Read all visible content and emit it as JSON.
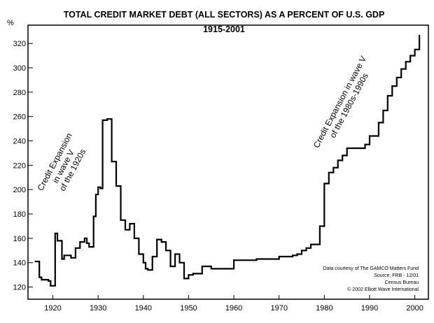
{
  "chart_data": {
    "type": "line",
    "title": "TOTAL CREDIT MARKET DEBT (ALL SECTORS) AS A PERCENT OF U.S. GDP",
    "subtitle": "1915-2001",
    "ylabel": "%",
    "xlabel": "",
    "xlim": [
      1914.5,
      2003
    ],
    "ylim": [
      110,
      335
    ],
    "x_ticks": [
      1920,
      1930,
      1940,
      1950,
      1960,
      1970,
      1980,
      1990,
      2000
    ],
    "y_ticks": [
      120,
      140,
      160,
      180,
      200,
      220,
      240,
      260,
      280,
      300,
      320
    ],
    "grid": false,
    "series": [
      {
        "name": "",
        "x": [
          1916,
          1917,
          1917.5,
          1918,
          1919,
          1919.5,
          1920,
          1920.5,
          1921,
          1922,
          1922.5,
          1923,
          1924,
          1925,
          1926,
          1927,
          1927.5,
          1928,
          1929,
          1929.5,
          1930,
          1930.5,
          1931,
          1932,
          1933,
          1934,
          1935,
          1936,
          1937,
          1938,
          1939,
          1940,
          1940.5,
          1941,
          1942,
          1943,
          1944,
          1945,
          1946,
          1947,
          1948,
          1949,
          1950,
          1951,
          1953,
          1955,
          1960,
          1965,
          1970,
          1973,
          1974,
          1975,
          1976,
          1977,
          1979,
          1980,
          1981,
          1982,
          1983,
          1984,
          1985,
          1986,
          1987,
          1988,
          1989,
          1990,
          1991,
          1992,
          1993,
          1994,
          1995,
          1996,
          1997,
          1998,
          1999,
          2000,
          2001
        ],
        "values": [
          141,
          128,
          126,
          126,
          125,
          121,
          121,
          164,
          158,
          143,
          146,
          146,
          144,
          152,
          157,
          160,
          156,
          153,
          178,
          196,
          202,
          201,
          257,
          258,
          223,
          203,
          175,
          167,
          172,
          160,
          147,
          140,
          135,
          134,
          145,
          159,
          157,
          150,
          137,
          147,
          140,
          127,
          130,
          131,
          137,
          135,
          142,
          143,
          145,
          146,
          147,
          150,
          152,
          155,
          170,
          205,
          214,
          218,
          224,
          228,
          234,
          234,
          234,
          234,
          237,
          244,
          244,
          255,
          265,
          277,
          285,
          292,
          299,
          305,
          310,
          315,
          327
        ]
      }
    ],
    "annotations": [
      {
        "lines": [
          "Credit Expansion",
          "in wave V",
          "of the 1920s"
        ]
      },
      {
        "lines": [
          "Credit Expansion in wave V",
          "of the 1980s-1990s"
        ]
      }
    ],
    "source_note": [
      "Data courtesy of The GAMCO Matters Fund",
      "Source: FRB - 12/01",
      "Census Bureau",
      "© 2002 Elliott Wave International"
    ]
  }
}
